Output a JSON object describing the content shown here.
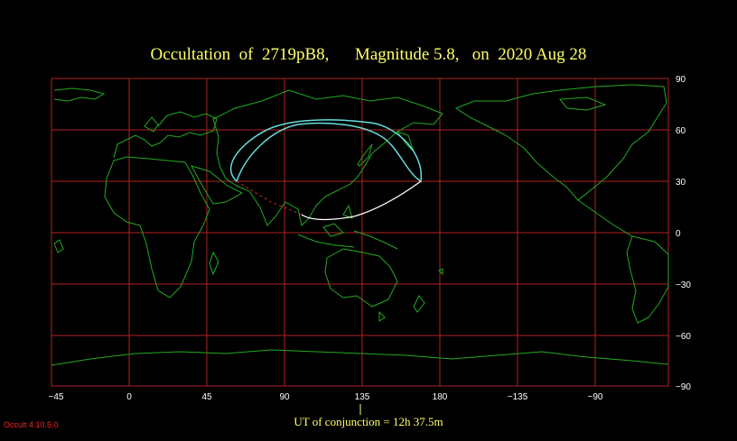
{
  "title": "Occultation  of  2719pB8,      Magnitude 5.8,   on  2020 Aug 28",
  "axes": {
    "lat_labels": [
      "90",
      "60",
      "30",
      "0",
      "−30",
      "−60",
      "−90"
    ],
    "lon_labels": [
      "−45",
      "0",
      "45",
      "90",
      "135",
      "180",
      "−135",
      "−90"
    ]
  },
  "conjunction_label": "UT of conjunction = 12h 37.5m",
  "version": "Occult 4.10.5.0",
  "colors": {
    "background": "#000000",
    "grid": "#b22222",
    "coast": "#22aa22",
    "path_north": "#66dddd",
    "path_south": "#ffffff",
    "path_dashed": "#cc2222",
    "title": "#ffff66"
  }
}
